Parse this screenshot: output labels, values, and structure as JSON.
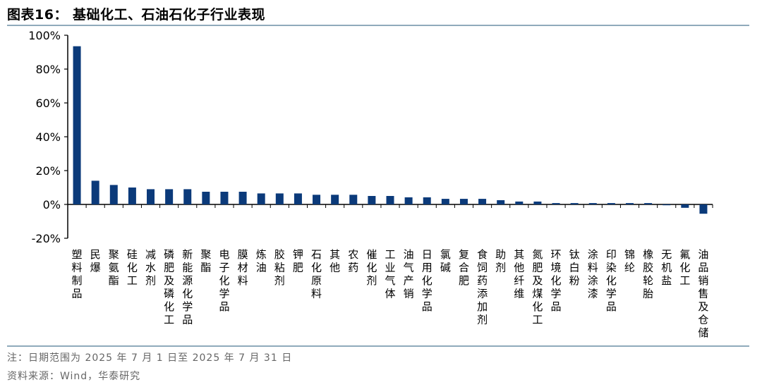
{
  "title": "图表16： 基础化工、石油石化子行业表现",
  "notes": {
    "line1": "注：日期范围为 2025 年 7 月 1 日至 2025 年 7 月 31 日",
    "line2": "资料来源：Wind，华泰研究"
  },
  "chart_data": {
    "type": "bar",
    "title": "",
    "xlabel": "",
    "ylabel": "",
    "ylim": [
      -20,
      100
    ],
    "yticks": [
      "100%",
      "80%",
      "60%",
      "40%",
      "20%",
      "0%",
      "-20%"
    ],
    "ytick_values": [
      100,
      80,
      60,
      40,
      20,
      0,
      -20
    ],
    "bar_color": "#0b3a7a",
    "categories": [
      "塑料制品",
      "民爆",
      "聚氨酯",
      "硅化工",
      "减水剂",
      "磷肥及磷化工",
      "新能源化学品",
      "聚酯",
      "电子化学品",
      "膜材料",
      "炼油",
      "胶粘剂",
      "钾肥",
      "石化原料",
      "其他",
      "农药",
      "催化剂",
      "工业气体",
      "油气产销",
      "日用化学品",
      "氯碱",
      "复合肥",
      "食饲药添加剂",
      "助剂",
      "其他纤维",
      "氮肥及煤化工",
      "环境化学品",
      "钛白粉",
      "涂料涂漆",
      "印染化学品",
      "锦纶",
      "橡胶轮胎",
      "无机盐",
      "氟化工",
      "油品销售及仓储"
    ],
    "values": [
      93.5,
      14.0,
      11.5,
      10.0,
      9.0,
      9.0,
      9.0,
      7.5,
      7.5,
      7.5,
      6.5,
      6.5,
      6.5,
      5.7,
      5.7,
      5.7,
      5.0,
      5.0,
      4.2,
      4.2,
      3.3,
      3.3,
      3.3,
      2.5,
      1.7,
      1.7,
      0.8,
      0.8,
      0.8,
      0.8,
      0.8,
      0.8,
      -0.5,
      -2.0,
      -5.5
    ]
  }
}
